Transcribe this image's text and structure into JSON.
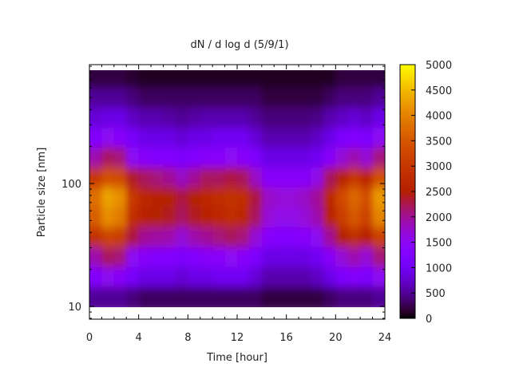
{
  "chart_data": {
    "type": "heatmap",
    "title": "dN / d log d (5/9/1)",
    "xlabel": "Time [hour]",
    "ylabel": "Particle size [nm]",
    "xlim": [
      0,
      24
    ],
    "ylim": [
      7.9,
      930
    ],
    "yscale": "log",
    "xticks": [
      "0",
      "4",
      "8",
      "12",
      "16",
      "20",
      "24"
    ],
    "yticks": [
      "10",
      "100"
    ],
    "colorbar": {
      "range": [
        0,
        5000
      ],
      "ticks": [
        "0",
        "500",
        "1000",
        "1500",
        "2000",
        "2500",
        "3000",
        "3500",
        "4000",
        "4500",
        "5000"
      ],
      "palette": "black-blue-violet-red-orange-yellow"
    },
    "x_bin_hours": 1,
    "size_range_nm": [
      10,
      880
    ],
    "size_bins_nm": [
      10,
      15,
      22,
      33,
      47,
      68,
      100,
      150,
      220,
      330,
      500,
      750
    ],
    "z": [
      [
        500,
        500,
        500,
        400,
        300,
        300,
        300,
        300,
        300,
        300,
        300,
        300,
        300,
        300,
        200,
        200,
        200,
        200,
        200,
        300,
        400,
        400,
        400,
        500
      ],
      [
        1300,
        1500,
        1400,
        1100,
        900,
        900,
        900,
        800,
        900,
        900,
        1000,
        1000,
        1000,
        800,
        600,
        600,
        600,
        600,
        700,
        900,
        1200,
        1300,
        1200,
        1500
      ],
      [
        1900,
        2200,
        2100,
        1500,
        1400,
        1300,
        1300,
        1200,
        1300,
        1400,
        1400,
        1500,
        1400,
        1200,
        900,
        900,
        900,
        900,
        1000,
        1400,
        1700,
        1900,
        1700,
        2100
      ],
      [
        2900,
        3200,
        3100,
        2300,
        2000,
        1950,
        1900,
        1700,
        1900,
        2000,
        2100,
        2200,
        2100,
        1700,
        1400,
        1300,
        1300,
        1400,
        1500,
        2000,
        2500,
        2800,
        2600,
        3150
      ],
      [
        3600,
        4100,
        3900,
        2850,
        2600,
        2500,
        2400,
        2200,
        2400,
        2600,
        2700,
        2800,
        2700,
        2200,
        1700,
        1600,
        1600,
        1700,
        1900,
        2600,
        3100,
        3500,
        3200,
        4000
      ],
      [
        3800,
        4300,
        4100,
        3000,
        2700,
        2600,
        2500,
        2300,
        2500,
        2700,
        2800,
        2900,
        2800,
        2300,
        1800,
        1700,
        1700,
        1800,
        2000,
        2700,
        3300,
        3700,
        3400,
        4200
      ],
      [
        3000,
        3400,
        3300,
        2400,
        2200,
        2100,
        2000,
        1800,
        2000,
        2200,
        2200,
        2300,
        2200,
        1800,
        1400,
        1400,
        1400,
        1400,
        1600,
        2200,
        2600,
        3000,
        2700,
        3400
      ],
      [
        1900,
        2200,
        2100,
        1500,
        1400,
        1300,
        1300,
        1200,
        1300,
        1400,
        1400,
        1500,
        1400,
        1200,
        900,
        900,
        900,
        900,
        1000,
        1400,
        1700,
        1900,
        1700,
        2100
      ],
      [
        1300,
        1500,
        1400,
        1100,
        900,
        900,
        900,
        800,
        900,
        900,
        1000,
        1000,
        1000,
        800,
        600,
        600,
        600,
        600,
        700,
        900,
        1200,
        1300,
        1200,
        1500
      ],
      [
        800,
        900,
        900,
        700,
        600,
        600,
        550,
        500,
        550,
        600,
        600,
        600,
        600,
        500,
        400,
        400,
        400,
        400,
        440,
        600,
        700,
        800,
        700,
        900
      ],
      [
        500,
        500,
        500,
        400,
        300,
        300,
        300,
        300,
        300,
        300,
        300,
        300,
        300,
        300,
        200,
        200,
        200,
        200,
        200,
        300,
        400,
        400,
        400,
        500
      ],
      [
        200,
        200,
        200,
        150,
        100,
        100,
        100,
        100,
        100,
        100,
        100,
        100,
        100,
        100,
        100,
        100,
        100,
        100,
        100,
        100,
        200,
        200,
        200,
        200
      ]
    ]
  }
}
